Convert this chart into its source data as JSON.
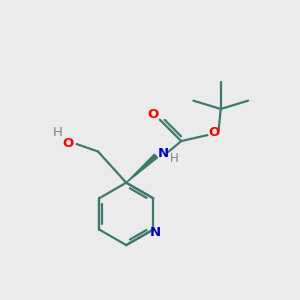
{
  "background_color": "#ebebeb",
  "bond_color": "#3d7a6e",
  "atom_colors": {
    "O": "#ff0000",
    "N": "#0000cc",
    "H_gray": "#808080"
  },
  "figsize": [
    3.0,
    3.0
  ],
  "dpi": 100
}
